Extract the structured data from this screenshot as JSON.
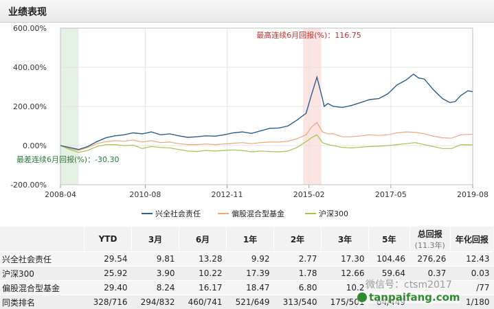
{
  "header": {
    "title": "业绩表现"
  },
  "chart_data": {
    "type": "line",
    "ylim": [
      -200,
      600
    ],
    "y_ticks": [
      "600.00%",
      "400.00%",
      "200.00%",
      "0.00%",
      "-200.00%"
    ],
    "y_tick_values": [
      600,
      400,
      200,
      0,
      -200
    ],
    "x_ticks": [
      "2008-04",
      "2010-08",
      "2012-11",
      "2015-02",
      "2017-05",
      "2019-08"
    ],
    "x_tick_values": [
      2008.25,
      2010.58,
      2012.83,
      2015.08,
      2017.33,
      2019.58
    ],
    "xlim": [
      2008.25,
      2019.58
    ],
    "annotations": {
      "max": "最高连续6月回报(%)：116.75",
      "min": "最差连续6月回报(%)：-30.30"
    },
    "max_window": [
      2014.92,
      2015.42
    ],
    "min_window": [
      2008.25,
      2008.75
    ],
    "series": [
      {
        "name": "兴全社会责任",
        "color": "#2a5d8f",
        "x": [
          2008.25,
          2008.5,
          2008.75,
          2009.0,
          2009.25,
          2009.5,
          2009.75,
          2010.0,
          2010.25,
          2010.5,
          2010.75,
          2011.0,
          2011.25,
          2011.5,
          2011.75,
          2012.0,
          2012.25,
          2012.5,
          2012.75,
          2013.0,
          2013.25,
          2013.5,
          2013.75,
          2014.0,
          2014.25,
          2014.5,
          2014.75,
          2015.0,
          2015.15,
          2015.3,
          2015.45,
          2015.5,
          2015.6,
          2015.75,
          2016.0,
          2016.25,
          2016.5,
          2016.75,
          2017.0,
          2017.25,
          2017.5,
          2017.75,
          2017.95,
          2018.1,
          2018.25,
          2018.5,
          2018.75,
          2018.95,
          2019.1,
          2019.25,
          2019.45,
          2019.58
        ],
        "y": [
          0,
          -10,
          -20,
          -5,
          20,
          40,
          50,
          55,
          65,
          60,
          70,
          55,
          60,
          50,
          42,
          45,
          50,
          48,
          55,
          65,
          70,
          62,
          75,
          88,
          90,
          100,
          130,
          165,
          260,
          350,
          240,
          200,
          215,
          200,
          195,
          205,
          220,
          235,
          240,
          265,
          310,
          335,
          365,
          345,
          340,
          285,
          240,
          220,
          225,
          255,
          280,
          275
        ]
      },
      {
        "name": "偏股混合型基金",
        "color": "#f0a677",
        "x": [
          2008.25,
          2008.5,
          2008.75,
          2009.0,
          2009.25,
          2009.5,
          2009.75,
          2010.0,
          2010.25,
          2010.5,
          2010.75,
          2011.0,
          2011.25,
          2011.5,
          2011.75,
          2012.0,
          2012.25,
          2012.5,
          2012.75,
          2013.0,
          2013.25,
          2013.5,
          2013.75,
          2014.0,
          2014.25,
          2014.5,
          2014.75,
          2015.0,
          2015.15,
          2015.3,
          2015.45,
          2015.6,
          2015.75,
          2016.0,
          2016.25,
          2016.5,
          2016.75,
          2017.0,
          2017.25,
          2017.5,
          2017.75,
          2018.0,
          2018.25,
          2018.5,
          2018.75,
          2019.0,
          2019.25,
          2019.58
        ],
        "y": [
          0,
          -15,
          -25,
          -10,
          10,
          20,
          25,
          22,
          28,
          18,
          25,
          15,
          18,
          10,
          5,
          5,
          8,
          5,
          8,
          12,
          15,
          10,
          15,
          18,
          18,
          22,
          35,
          55,
          95,
          118,
          70,
          60,
          60,
          45,
          45,
          50,
          55,
          52,
          55,
          65,
          70,
          68,
          60,
          48,
          40,
          38,
          55,
          58
        ]
      },
      {
        "name": "沪深300",
        "color": "#a8c24a",
        "x": [
          2008.25,
          2008.5,
          2008.75,
          2009.0,
          2009.25,
          2009.5,
          2009.75,
          2010.0,
          2010.25,
          2010.5,
          2010.75,
          2011.0,
          2011.25,
          2011.5,
          2011.75,
          2012.0,
          2012.25,
          2012.5,
          2012.75,
          2013.0,
          2013.25,
          2013.5,
          2013.75,
          2014.0,
          2014.25,
          2014.5,
          2014.75,
          2015.0,
          2015.15,
          2015.3,
          2015.45,
          2015.6,
          2015.75,
          2016.0,
          2016.25,
          2016.5,
          2016.75,
          2017.0,
          2017.25,
          2017.5,
          2017.75,
          2018.0,
          2018.25,
          2018.5,
          2018.75,
          2019.0,
          2019.25,
          2019.58
        ],
        "y": [
          0,
          -20,
          -35,
          -25,
          -5,
          5,
          5,
          0,
          2,
          -15,
          -5,
          -10,
          -12,
          -20,
          -28,
          -30,
          -25,
          -28,
          -25,
          -22,
          -25,
          -32,
          -28,
          -30,
          -32,
          -28,
          -10,
          20,
          40,
          55,
          15,
          5,
          0,
          -10,
          -12,
          -8,
          -5,
          -3,
          0,
          5,
          10,
          15,
          5,
          -5,
          -15,
          -15,
          5,
          3
        ]
      }
    ]
  },
  "legend": [
    "兴全社会责任",
    "偏股混合型基金",
    "沪深300"
  ],
  "table": {
    "headers": [
      "",
      "YTD",
      "3月",
      "6月",
      "1年",
      "2年",
      "3年",
      "5年",
      "总回报",
      "年化回报"
    ],
    "total_sub": "(11.3年)",
    "rows": [
      [
        "兴全社会责任",
        "29.54",
        "9.81",
        "13.28",
        "9.92",
        "2.77",
        "17.30",
        "104.46",
        "276.26",
        "12.43"
      ],
      [
        "沪深300",
        "25.92",
        "3.90",
        "10.22",
        "17.39",
        "1.78",
        "12.66",
        "59.64",
        "0.37",
        "0.03"
      ],
      [
        "偏股混合型基金",
        "29.40",
        "8.24",
        "16.17",
        "18.47",
        "6.80",
        "10.2",
        "",
        "",
        "/77"
      ],
      [
        "同类排名",
        "328/716",
        "294/832",
        "460/741",
        "521/649",
        "313/540",
        "175/501",
        "64/449",
        "",
        "1/180"
      ]
    ]
  },
  "watermark": {
    "text1": "微信号：ctsm2017",
    "text2": "tanpaifang.com"
  }
}
